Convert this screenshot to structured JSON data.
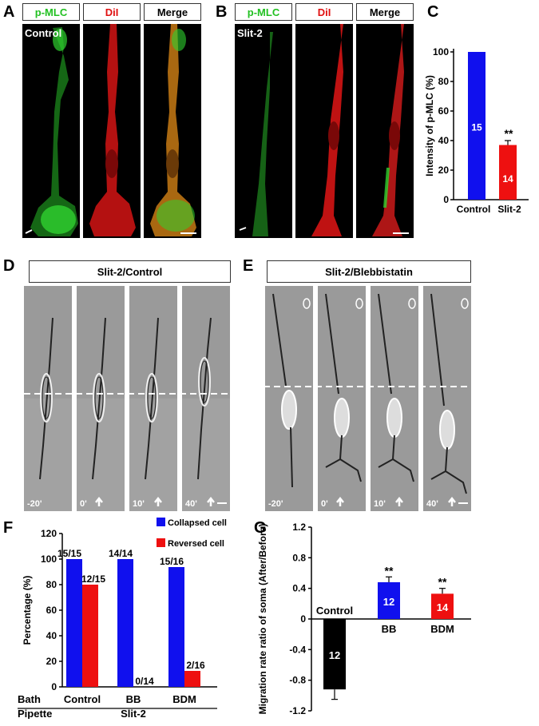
{
  "panels": {
    "A": {
      "letter": "A",
      "headers": [
        "p-MLC",
        "DiI",
        "Merge"
      ],
      "condition": "Control"
    },
    "B": {
      "letter": "B",
      "headers": [
        "p-MLC",
        "DiI",
        "Merge"
      ],
      "condition": "Slit-2"
    },
    "C": {
      "letter": "C"
    },
    "D": {
      "letter": "D",
      "title": "Slit-2/Control",
      "times": [
        "-20'",
        "0'",
        "10'",
        "40'"
      ]
    },
    "E": {
      "letter": "E",
      "title": "Slit-2/Blebbistatin",
      "times": [
        "-20'",
        "0'",
        "10'",
        "40'"
      ]
    },
    "F": {
      "letter": "F"
    },
    "G": {
      "letter": "G"
    }
  },
  "chart_data": [
    {
      "type": "bar",
      "ylabel": "Intensity of p-MLC (%)",
      "categories": [
        "Control",
        "Slit-2"
      ],
      "values": [
        100,
        37
      ],
      "errors": [
        0,
        3
      ],
      "n_labels": [
        "15",
        "14"
      ],
      "significance": [
        "",
        "**"
      ],
      "colors": [
        "#1010ee",
        "#ee1010"
      ],
      "ylim": [
        0,
        100
      ],
      "yticks": [
        0,
        20,
        40,
        60,
        80,
        100
      ]
    },
    {
      "type": "bar",
      "ylabel": "Percentage (%)",
      "categories": [
        "Control",
        "BB",
        "BDM"
      ],
      "series": [
        {
          "name": "Collapsed cell",
          "values": [
            100,
            100,
            93.75
          ],
          "labels": [
            "15/15",
            "14/14",
            "15/16"
          ],
          "color": "#1010ee"
        },
        {
          "name": "Reversed cell",
          "values": [
            80,
            0,
            12.5
          ],
          "labels": [
            "12/15",
            "0/14",
            "2/16"
          ],
          "color": "#ee1010"
        }
      ],
      "ylim": [
        0,
        120
      ],
      "yticks": [
        0,
        20,
        40,
        60,
        80,
        100,
        120
      ],
      "row_labels": {
        "bath": "Bath",
        "pipette": "Pipette",
        "pipette_value": "Slit-2"
      },
      "legend": "top-right"
    },
    {
      "type": "bar",
      "ylabel": "Migration rate ratio of soma (After/Before)",
      "categories": [
        "Control",
        "BB",
        "BDM"
      ],
      "values": [
        -0.92,
        0.48,
        0.33
      ],
      "errors": [
        0.13,
        0.07,
        0.07
      ],
      "n_labels": [
        "12",
        "12",
        "14"
      ],
      "significance": [
        "",
        "**",
        "**"
      ],
      "colors": [
        "#000000",
        "#1010ee",
        "#ee1010"
      ],
      "ylim": [
        -1.2,
        1.2
      ],
      "yticks": [
        -1.2,
        -0.8,
        -0.4,
        0,
        0.4,
        0.8,
        1.2
      ],
      "ytick_labels": [
        "-1.2",
        "-0.8",
        "-0.4",
        "0",
        "0.4",
        "0.8",
        "1.2"
      ]
    }
  ]
}
